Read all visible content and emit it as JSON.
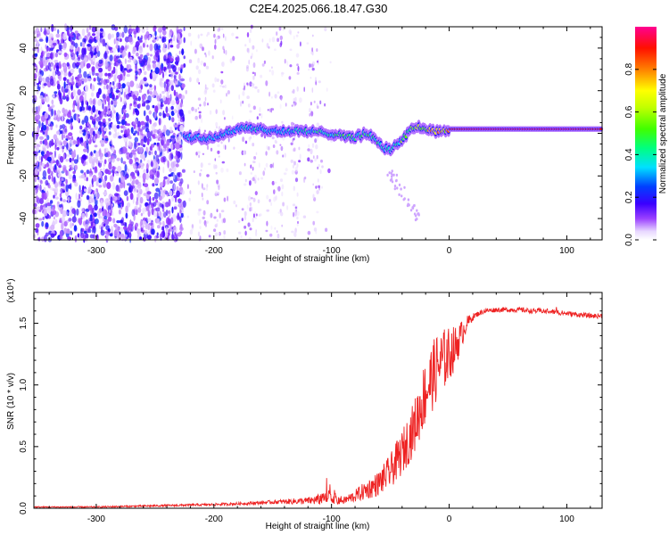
{
  "figure_title": "C2E4.2025.066.18.47.G30",
  "chart_data": [
    {
      "type": "heatmap",
      "title": "C2E4.2025.066.18.47.G30",
      "xlabel": "Height of straight line (km)",
      "ylabel": "Frequency (Hz)",
      "xlim": [
        -353,
        130
      ],
      "ylim": [
        -50,
        50
      ],
      "xticks": [
        -300,
        -200,
        -100,
        0,
        100
      ],
      "yticks": [
        -40,
        -20,
        0,
        20,
        40
      ],
      "xtick_labels": [
        "-300",
        "-200",
        "-100",
        "0",
        "100"
      ],
      "ytick_labels": [
        "-40",
        "-20",
        "0",
        "20",
        "40"
      ],
      "colorbar": {
        "label": "Normalized spectral amplitude",
        "range": [
          0,
          1
        ],
        "ticks": [
          0.0,
          0.2,
          0.4,
          0.6,
          0.8
        ],
        "tick_labels": [
          "0.0",
          "0.2",
          "0.4",
          "0.6",
          "0.8"
        ],
        "colormap": [
          "#ffffff",
          "#7b00ff",
          "#0000ff",
          "#00e5ff",
          "#00ff00",
          "#ffff00",
          "#ff8000",
          "#ff0000",
          "#ff00a0"
        ]
      },
      "noise_region_x": [
        -353,
        -225
      ],
      "sparse_region_x": [
        -225,
        -100
      ],
      "signal_track": {
        "x": [
          -225,
          -200,
          -175,
          -150,
          -125,
          -100,
          -90,
          -80,
          -70,
          -60,
          -55,
          -50,
          -45,
          -40,
          -35,
          -30,
          -25,
          -20,
          -10,
          0,
          25,
          50,
          75,
          100,
          130
        ],
        "frequency": [
          -2,
          -2,
          3,
          1,
          1,
          0,
          -1,
          -2,
          0,
          -4,
          -7,
          -8,
          -5,
          -3,
          0,
          3,
          3,
          2,
          1,
          2,
          2,
          2,
          2,
          2,
          2
        ],
        "amplitude": [
          0.35,
          0.4,
          0.45,
          0.4,
          0.45,
          0.5,
          0.55,
          0.55,
          0.5,
          0.55,
          0.5,
          0.45,
          0.55,
          0.6,
          0.65,
          0.7,
          0.75,
          0.8,
          0.85,
          0.9,
          0.95,
          0.95,
          0.95,
          0.95,
          0.9
        ]
      }
    },
    {
      "type": "line",
      "xlabel": "Height of straight line (km)",
      "ylabel": "SNR (10 * v/v)",
      "y_multiplier": "(x10⁴)",
      "xlim": [
        -353,
        130
      ],
      "ylim": [
        0,
        1.75
      ],
      "xticks": [
        -300,
        -200,
        -100,
        0,
        100
      ],
      "yticks": [
        0.0,
        0.5,
        1.0,
        1.5
      ],
      "xtick_labels": [
        "-300",
        "-200",
        "-100",
        "0",
        "100"
      ],
      "ytick_labels": [
        "0.0",
        "0.5",
        "1.0",
        "1.5"
      ],
      "series": [
        {
          "color": "#ee2222",
          "x": [
            -353,
            -300,
            -250,
            -200,
            -170,
            -150,
            -120,
            -100,
            -90,
            -80,
            -70,
            -60,
            -50,
            -40,
            -30,
            -25,
            -20,
            -15,
            -10,
            -5,
            0,
            5,
            10,
            15,
            20,
            25,
            30,
            40,
            50,
            60,
            70,
            80,
            90,
            100,
            110,
            120,
            130
          ],
          "values": [
            0.01,
            0.01,
            0.02,
            0.03,
            0.04,
            0.05,
            0.06,
            0.08,
            0.06,
            0.1,
            0.15,
            0.2,
            0.3,
            0.45,
            0.65,
            0.8,
            0.95,
            1.05,
            1.15,
            1.2,
            1.25,
            1.3,
            1.4,
            1.5,
            1.55,
            1.58,
            1.6,
            1.61,
            1.61,
            1.61,
            1.6,
            1.6,
            1.59,
            1.58,
            1.57,
            1.56,
            1.56
          ],
          "noise": [
            0.005,
            0.006,
            0.008,
            0.01,
            0.012,
            0.015,
            0.03,
            0.06,
            0.03,
            0.05,
            0.08,
            0.1,
            0.14,
            0.18,
            0.22,
            0.25,
            0.28,
            0.28,
            0.28,
            0.26,
            0.22,
            0.18,
            0.12,
            0.06,
            0.03,
            0.02,
            0.02,
            0.02,
            0.02,
            0.02,
            0.02,
            0.02,
            0.02,
            0.02,
            0.02,
            0.02,
            0.02
          ]
        }
      ]
    }
  ]
}
